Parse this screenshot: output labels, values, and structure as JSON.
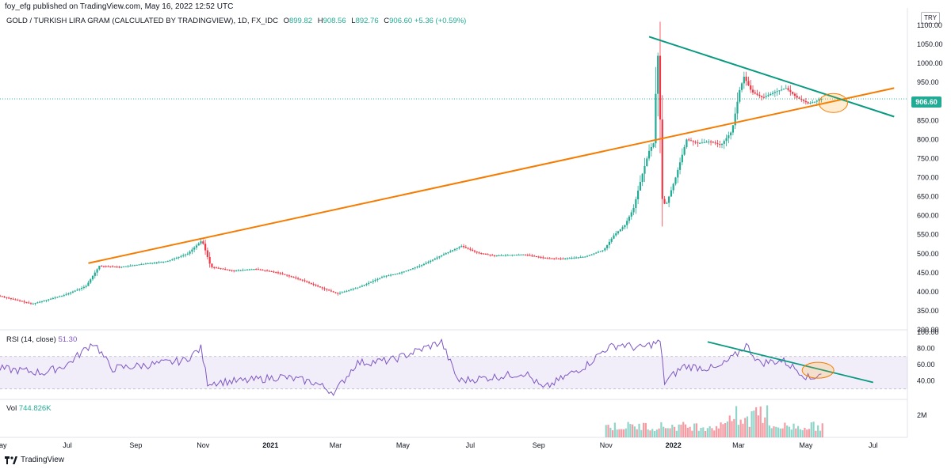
{
  "header": {
    "published": "foy_efg published on TradingView.com, May 16, 2022 12:52 UTC",
    "currency": "TRY"
  },
  "legend": {
    "symbol": "GOLD / TURKISH LIRA GRAM (CALCULATED BY TRADINGVIEW), 1D, FX_IDC",
    "o_label": "O",
    "o": "899.82",
    "h_label": "H",
    "h": "908.56",
    "l_label": "L",
    "l": "892.76",
    "c_label": "C",
    "c": "906.60",
    "change": "+5.36 (+0.59%)"
  },
  "price_tag": "906.60",
  "rsi_legend": {
    "name": "RSI (14, close)",
    "value": "51.30"
  },
  "vol_legend": {
    "name": "Vol",
    "value": "744.826K"
  },
  "branding": "TradingView",
  "colors": {
    "up": "#22ab94",
    "down": "#f23645",
    "rsi": "#7e57c2",
    "trend_orange": "#f57c00",
    "trend_teal": "#089981"
  },
  "chart_data": [
    {
      "type": "candlestick",
      "title": "GOLD / TURKISH LIRA GRAM (CALCULATED BY TRADINGVIEW), 1D, FX_IDC",
      "ylabel": "TRY",
      "ylim": [
        300,
        1100
      ],
      "yticks": [
        "1100.00",
        "1050.00",
        "1000.00",
        "950.00",
        "900.00",
        "850.00",
        "800.00",
        "750.00",
        "700.00",
        "650.00",
        "600.00",
        "550.00",
        "500.00",
        "450.00",
        "400.00",
        "350.00",
        "300.00"
      ],
      "x_ticks": [
        "May",
        "Jul",
        "Sep",
        "Nov",
        "2021",
        "Mar",
        "May",
        "Jul",
        "Sep",
        "Nov",
        "2022",
        "Mar",
        "May",
        "Jul"
      ],
      "x_start": "2020-05-01",
      "x_end": "2022-08-01",
      "price_path": [
        [
          "2020-05-01",
          390
        ],
        [
          "2020-06-01",
          368
        ],
        [
          "2020-07-01",
          392
        ],
        [
          "2020-07-20",
          415
        ],
        [
          "2020-08-01",
          468
        ],
        [
          "2020-08-20",
          465
        ],
        [
          "2020-09-15",
          475
        ],
        [
          "2020-10-01",
          480
        ],
        [
          "2020-10-20",
          500
        ],
        [
          "2020-11-02",
          535
        ],
        [
          "2020-11-10",
          465
        ],
        [
          "2020-12-01",
          455
        ],
        [
          "2020-12-20",
          460
        ],
        [
          "2021-01-10",
          450
        ],
        [
          "2021-02-01",
          430
        ],
        [
          "2021-02-20",
          408
        ],
        [
          "2021-03-05",
          395
        ],
        [
          "2021-03-25",
          413
        ],
        [
          "2021-04-15",
          440
        ],
        [
          "2021-05-01",
          450
        ],
        [
          "2021-05-20",
          470
        ],
        [
          "2021-06-10",
          500
        ],
        [
          "2021-06-25",
          520
        ],
        [
          "2021-07-10",
          502
        ],
        [
          "2021-07-25",
          495
        ],
        [
          "2021-08-20",
          498
        ],
        [
          "2021-09-10",
          488
        ],
        [
          "2021-09-25",
          487
        ],
        [
          "2021-10-15",
          492
        ],
        [
          "2021-11-01",
          510
        ],
        [
          "2021-11-10",
          548
        ],
        [
          "2021-11-20",
          575
        ],
        [
          "2021-11-28",
          620
        ],
        [
          "2021-12-05",
          700
        ],
        [
          "2021-12-12",
          770
        ],
        [
          "2021-12-16",
          790
        ],
        [
          "2021-12-19",
          985
        ],
        [
          "2021-12-21",
          1055
        ],
        [
          "2021-12-23",
          650
        ],
        [
          "2021-12-27",
          625
        ],
        [
          "2022-01-05",
          700
        ],
        [
          "2022-01-15",
          800
        ],
        [
          "2022-01-25",
          790
        ],
        [
          "2022-02-05",
          795
        ],
        [
          "2022-02-15",
          785
        ],
        [
          "2022-02-25",
          822
        ],
        [
          "2022-03-04",
          930
        ],
        [
          "2022-03-08",
          965
        ],
        [
          "2022-03-15",
          925
        ],
        [
          "2022-03-25",
          910
        ],
        [
          "2022-04-05",
          925
        ],
        [
          "2022-04-15",
          935
        ],
        [
          "2022-04-25",
          910
        ],
        [
          "2022-05-05",
          895
        ],
        [
          "2022-05-12",
          900
        ],
        [
          "2022-05-16",
          906.6
        ]
      ],
      "last_close": 906.6,
      "trendlines": [
        {
          "name": "orange-support",
          "points": [
            [
              "2020-07-20",
              475
            ],
            [
              "2022-07-20",
              935
            ]
          ]
        },
        {
          "name": "teal-resistance",
          "points": [
            [
              "2021-12-10",
              1070
            ],
            [
              "2022-07-20",
              860
            ]
          ]
        }
      ],
      "annotation": {
        "type": "ellipse",
        "at": [
          "2022-05-28",
          900
        ]
      }
    },
    {
      "type": "line",
      "title": "RSI (14, close)",
      "ylim": [
        20,
        100
      ],
      "yticks": [
        "100.00",
        "80.00",
        "60.00",
        "40.00"
      ],
      "band": [
        30,
        70
      ],
      "rsi_path": [
        [
          "2020-05-01",
          55
        ],
        [
          "2020-06-10",
          50
        ],
        [
          "2020-07-01",
          60
        ],
        [
          "2020-07-25",
          88
        ],
        [
          "2020-08-10",
          55
        ],
        [
          "2020-09-15",
          60
        ],
        [
          "2020-10-15",
          65
        ],
        [
          "2020-10-30",
          80
        ],
        [
          "2020-11-05",
          38
        ],
        [
          "2020-12-10",
          40
        ],
        [
          "2021-01-10",
          45
        ],
        [
          "2021-02-10",
          38
        ],
        [
          "2021-02-28",
          25
        ],
        [
          "2021-03-20",
          62
        ],
        [
          "2021-04-20",
          65
        ],
        [
          "2021-05-20",
          80
        ],
        [
          "2021-06-05",
          88
        ],
        [
          "2021-06-20",
          40
        ],
        [
          "2021-07-25",
          45
        ],
        [
          "2021-08-20",
          50
        ],
        [
          "2021-09-05",
          30
        ],
        [
          "2021-09-25",
          45
        ],
        [
          "2021-10-15",
          60
        ],
        [
          "2021-11-01",
          80
        ],
        [
          "2021-11-15",
          85
        ],
        [
          "2021-12-01",
          80
        ],
        [
          "2021-12-12",
          85
        ],
        [
          "2021-12-20",
          88
        ],
        [
          "2021-12-24",
          38
        ],
        [
          "2022-01-10",
          58
        ],
        [
          "2022-02-10",
          55
        ],
        [
          "2022-02-25",
          70
        ],
        [
          "2022-03-08",
          84
        ],
        [
          "2022-03-20",
          62
        ],
        [
          "2022-04-10",
          65
        ],
        [
          "2022-04-25",
          52
        ],
        [
          "2022-05-05",
          42
        ],
        [
          "2022-05-16",
          51.3
        ]
      ],
      "last_value": 51.3,
      "trendline": [
        [
          "2022-02-01",
          88
        ],
        [
          "2022-07-01",
          38
        ]
      ]
    },
    {
      "type": "bar",
      "title": "Vol",
      "yticks": [
        "2M"
      ],
      "last_value": "744.826K",
      "period": [
        "2021-11-01",
        "2022-05-16"
      ]
    }
  ]
}
